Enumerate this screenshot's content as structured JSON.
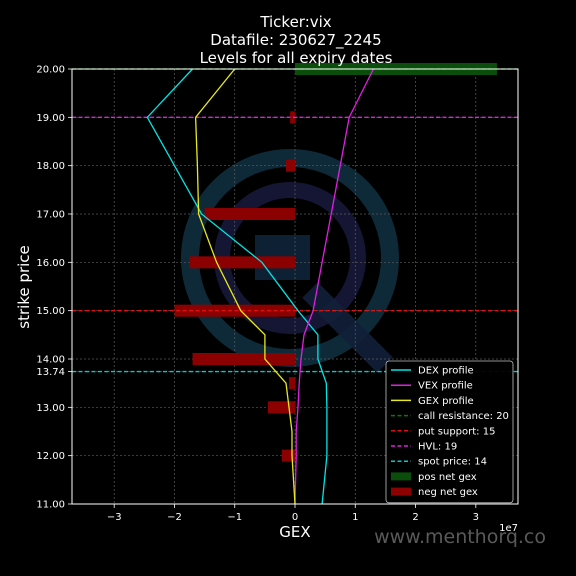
{
  "chart_data": {
    "type": "bar",
    "orientation": "horizontal",
    "title_lines": [
      "Ticker:vix",
      "Datafile: 230627_2245",
      "Levels for all expiry dates"
    ],
    "xlabel": "GEX",
    "ylabel": "strike price",
    "x_multiplier_label": "1e7",
    "xlim": [
      -3.7,
      3.7
    ],
    "ylim": [
      11.0,
      20.0
    ],
    "x_ticks": [
      -3,
      -2,
      -1,
      0,
      1,
      2,
      3
    ],
    "x_tick_labels": [
      "−3",
      "−2",
      "−1",
      "0",
      "1",
      "2",
      "3"
    ],
    "y_ticks": [
      11.0,
      12.0,
      13.0,
      13.74,
      14.0,
      15.0,
      16.0,
      17.0,
      18.0,
      19.0,
      20.0
    ],
    "y_tick_labels": [
      "11.00",
      "12.00",
      "13.00",
      "13.74",
      "14.00",
      "15.00",
      "16.00",
      "17.00",
      "18.00",
      "19.00",
      "20.00"
    ],
    "grid": true,
    "legend_position": "lower-right",
    "colors": {
      "background": "#000000",
      "dex": "#00e5e5",
      "vex": "#e020e0",
      "gex": "#e8e820",
      "call_resistance": "#0a7a0a",
      "put_support": "#dd1111",
      "hvl": "#e020e0",
      "spot": "#00cccc",
      "pos_gex": "#0b4d0b",
      "neg_gex": "#8b0000"
    },
    "net_gex_bars": [
      {
        "strike": 11.0,
        "value": 0.0
      },
      {
        "strike": 12.0,
        "value": -0.22
      },
      {
        "strike": 12.5,
        "value": 0.0
      },
      {
        "strike": 13.0,
        "value": -0.45
      },
      {
        "strike": 13.5,
        "value": -0.1
      },
      {
        "strike": 14.0,
        "value": -1.7
      },
      {
        "strike": 15.0,
        "value": -2.0
      },
      {
        "strike": 16.0,
        "value": -1.75
      },
      {
        "strike": 17.0,
        "value": -1.5
      },
      {
        "strike": 18.0,
        "value": -0.15
      },
      {
        "strike": 19.0,
        "value": -0.08
      },
      {
        "strike": 20.0,
        "value": 3.35
      }
    ],
    "series": [
      {
        "name": "DEX profile",
        "strikes": [
          11.0,
          12.0,
          12.5,
          13.0,
          13.5,
          14.0,
          14.5,
          15.0,
          16.0,
          17.0,
          18.0,
          19.0,
          20.0
        ],
        "values": [
          0.45,
          0.53,
          0.53,
          0.53,
          0.52,
          0.38,
          0.38,
          0.05,
          -0.55,
          -1.55,
          -2.0,
          -2.45,
          -1.7
        ]
      },
      {
        "name": "VEX profile",
        "strikes": [
          11.0,
          12.0,
          12.5,
          13.0,
          13.5,
          14.0,
          14.5,
          15.0,
          16.0,
          17.0,
          18.0,
          19.0,
          20.0
        ],
        "values": [
          0.0,
          0.02,
          0.02,
          0.05,
          0.07,
          0.1,
          0.15,
          0.3,
          0.45,
          0.6,
          0.75,
          0.9,
          1.3
        ]
      },
      {
        "name": "GEX profile",
        "strikes": [
          11.0,
          12.0,
          12.5,
          13.0,
          13.5,
          14.0,
          14.5,
          15.0,
          16.0,
          17.0,
          18.0,
          19.0,
          20.0
        ],
        "values": [
          0.0,
          -0.05,
          -0.05,
          -0.1,
          -0.15,
          -0.5,
          -0.5,
          -0.9,
          -1.3,
          -1.6,
          -1.62,
          -1.65,
          -1.0
        ]
      }
    ],
    "levels": [
      {
        "name": "call resistance: 20",
        "strike": 20.0,
        "color_key": "call_resistance"
      },
      {
        "name": "put support: 15",
        "strike": 15.0,
        "color_key": "put_support"
      },
      {
        "name": "HVL: 19",
        "strike": 19.0,
        "color_key": "hvl"
      },
      {
        "name": "spot price: 14",
        "strike": 13.74,
        "color_key": "spot"
      }
    ],
    "legend_entries": [
      {
        "label": "DEX profile",
        "kind": "line",
        "color_key": "dex"
      },
      {
        "label": "VEX profile",
        "kind": "line",
        "color_key": "vex"
      },
      {
        "label": "GEX profile",
        "kind": "line",
        "color_key": "gex"
      },
      {
        "label": "call resistance: 20",
        "kind": "dashed",
        "color_key": "call_resistance"
      },
      {
        "label": "put support: 15",
        "kind": "dashed",
        "color_key": "put_support"
      },
      {
        "label": "HVL: 19",
        "kind": "dashed",
        "color_key": "hvl"
      },
      {
        "label": "spot price: 14",
        "kind": "dashed",
        "color_key": "spot"
      },
      {
        "label": "pos net gex",
        "kind": "patch",
        "color_key": "pos_gex"
      },
      {
        "label": "neg net gex",
        "kind": "patch",
        "color_key": "neg_gex"
      }
    ]
  },
  "watermark": "www.menthorq.co"
}
